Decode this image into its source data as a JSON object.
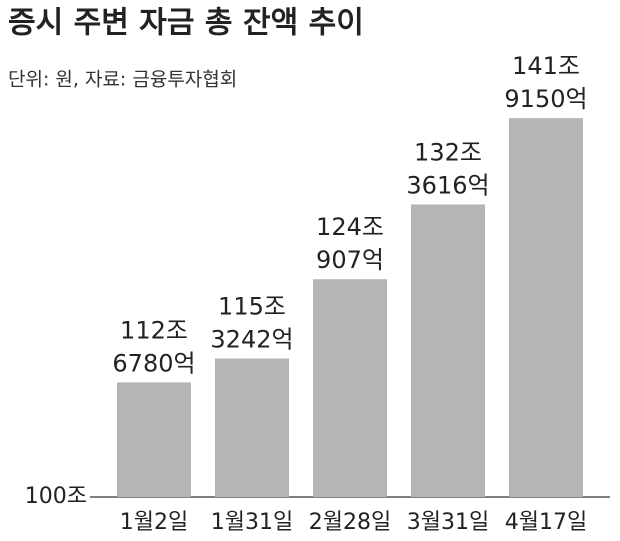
{
  "chart_data": {
    "type": "bar",
    "title": "증시 주변 자금 총 잔액 추이",
    "subtitle": "단위: 원, 자료: 금융투자협회",
    "categories": [
      "1월2일",
      "1월31일",
      "2월28일",
      "3월31일",
      "4월17일"
    ],
    "values": [
      112.678,
      115.3242,
      124.0907,
      132.3616,
      141.915
    ],
    "value_labels": [
      [
        "112조",
        "6780억"
      ],
      [
        "115조",
        "3242억"
      ],
      [
        "124조",
        "907억"
      ],
      [
        "132조",
        "3616억"
      ],
      [
        "141조",
        "9150억"
      ]
    ],
    "color": "#b5b5b5",
    "ylim": [
      100,
      150
    ],
    "yticks": [
      {
        "value": 100,
        "label": "100조"
      }
    ]
  }
}
